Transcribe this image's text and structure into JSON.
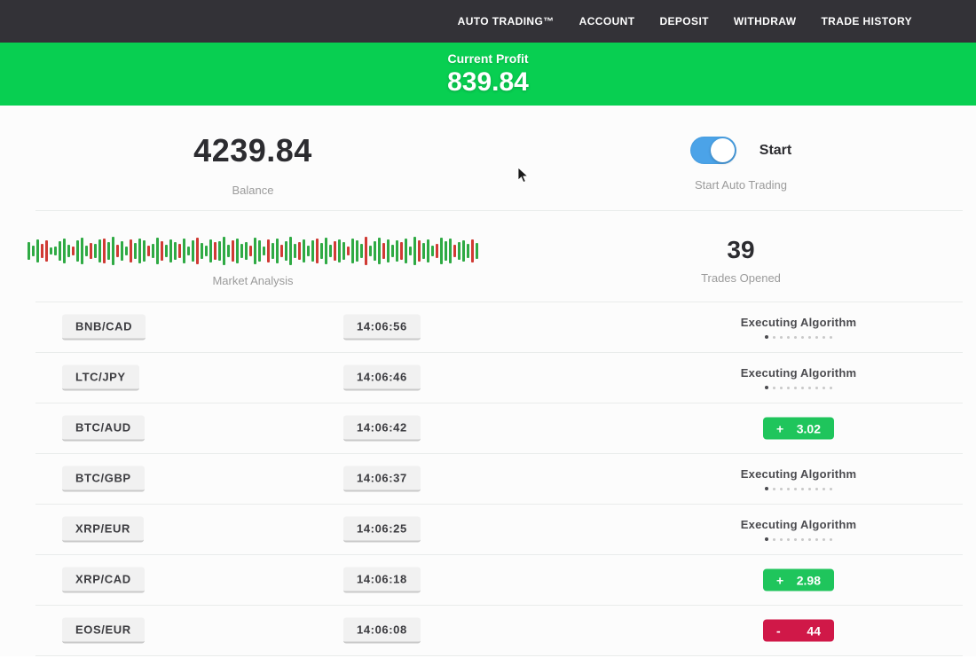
{
  "nav": {
    "items": [
      {
        "label": "AUTO TRADING™"
      },
      {
        "label": "ACCOUNT"
      },
      {
        "label": "DEPOSIT"
      },
      {
        "label": "WITHDRAW"
      },
      {
        "label": "TRADE HISTORY"
      }
    ]
  },
  "profit_banner": {
    "label": "Current Profit",
    "value": "839.84"
  },
  "stats": {
    "balance": {
      "value": "4239.84",
      "label": "Balance"
    },
    "auto_trading": {
      "state": "on",
      "toggle_label": "Start",
      "sublabel": "Start Auto Trading"
    },
    "market_analysis": {
      "label": "Market Analysis",
      "bars": [
        "g20",
        "g12",
        "g26",
        "r16",
        "r24",
        "g8",
        "g10",
        "g22",
        "g28",
        "g14",
        "r10",
        "g24",
        "g30",
        "g12",
        "r18",
        "g16",
        "g26",
        "r28",
        "g20",
        "g32",
        "r14",
        "g22",
        "g10",
        "r26",
        "g18",
        "g28",
        "g24",
        "r12",
        "g16",
        "g30",
        "r22",
        "g14",
        "g26",
        "g20",
        "r16",
        "g28",
        "g10",
        "g24",
        "r30",
        "g18",
        "g12",
        "g26",
        "r20",
        "g22",
        "g32",
        "g14",
        "r24",
        "g28",
        "g16",
        "g20",
        "r12",
        "g30",
        "g24",
        "g10",
        "r26",
        "g18",
        "g28",
        "r14",
        "g22",
        "g32",
        "g16",
        "r20",
        "g26",
        "g12",
        "g24",
        "r28",
        "g18",
        "g30",
        "g14",
        "r22",
        "g26",
        "g20",
        "r10",
        "g28",
        "g24",
        "g16",
        "r32",
        "g12",
        "g22",
        "g30",
        "r18",
        "g26",
        "g14",
        "g24",
        "r20",
        "g28",
        "g10",
        "g32",
        "r24",
        "g18",
        "g26",
        "g12",
        "r16",
        "g30",
        "g22",
        "g28",
        "r14",
        "g20",
        "g24",
        "g16",
        "r26",
        "g18"
      ]
    },
    "trades_opened": {
      "value": "39",
      "label": "Trades Opened"
    }
  },
  "trades": {
    "executing_label": "Executing Algorithm",
    "progress_dots": {
      "count": 10,
      "active_index": 0
    },
    "rows": [
      {
        "pair": "BNB/CAD",
        "time": "14:06:56",
        "status": {
          "type": "executing"
        }
      },
      {
        "pair": "LTC/JPY",
        "time": "14:06:46",
        "status": {
          "type": "executing"
        }
      },
      {
        "pair": "BTC/AUD",
        "time": "14:06:42",
        "status": {
          "type": "profit",
          "sign": "+",
          "value": "3.02"
        }
      },
      {
        "pair": "BTC/GBP",
        "time": "14:06:37",
        "status": {
          "type": "executing"
        }
      },
      {
        "pair": "XRP/EUR",
        "time": "14:06:25",
        "status": {
          "type": "executing"
        }
      },
      {
        "pair": "XRP/CAD",
        "time": "14:06:18",
        "status": {
          "type": "profit",
          "sign": "+",
          "value": "2.98"
        }
      },
      {
        "pair": "EOS/EUR",
        "time": "14:06:08",
        "status": {
          "type": "loss",
          "sign": "-",
          "value": "44"
        }
      }
    ]
  },
  "colors": {
    "navbar_bg": "#333237",
    "banner_green": "#08cf51",
    "toggle_blue": "#4ba3e8",
    "badge_profit_green": "#1fc55c",
    "badge_loss_red": "#d01848",
    "candle_green": "#2faa44",
    "candle_red": "#d03a34"
  }
}
